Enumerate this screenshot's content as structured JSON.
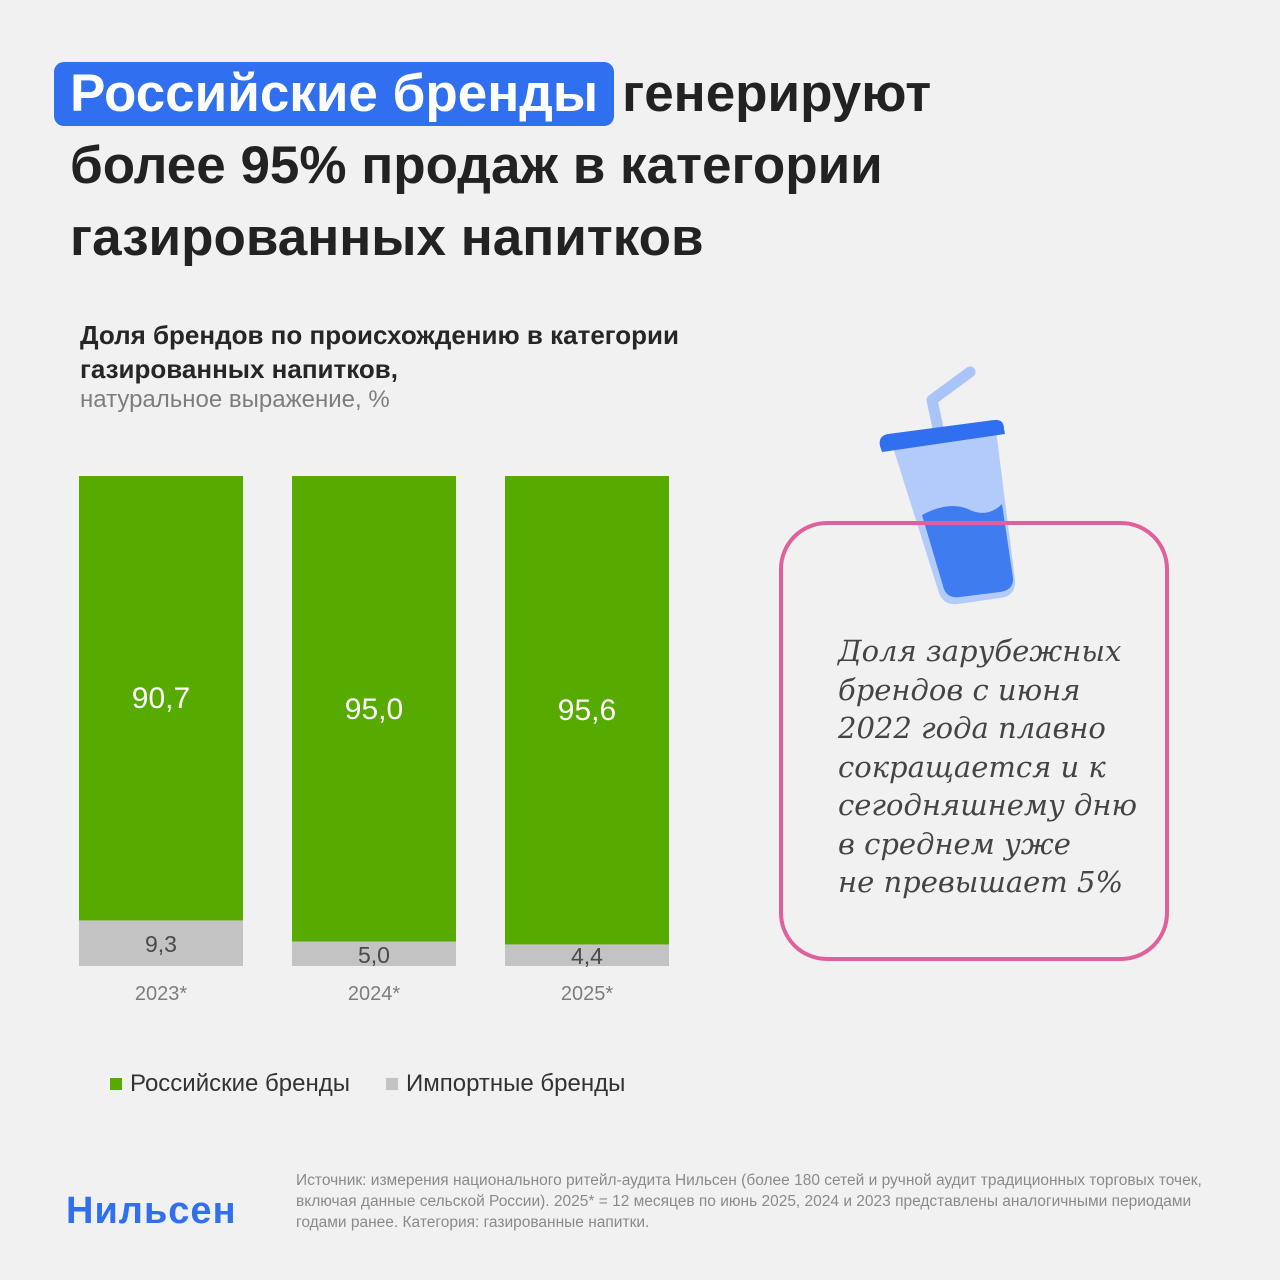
{
  "headline": {
    "highlight": "Российские бренды",
    "rest": "генерируют\nболее 95% продаж в категории\nгазированных напитков"
  },
  "chart_title": "Доля брендов по происхождению в категории\nгазированных напитков,",
  "chart_subtitle": "натуральное выражение, %",
  "chart_data": {
    "type": "bar",
    "stacked": true,
    "categories": [
      "2023*",
      "2024*",
      "2025*"
    ],
    "series": [
      {
        "name": "Российские бренды",
        "values": [
          90.7,
          95.0,
          95.6
        ],
        "labels": [
          "90,7",
          "95,0",
          "95,6"
        ],
        "color": "#57ab00"
      },
      {
        "name": "Импортные бренды",
        "values": [
          9.3,
          5.0,
          4.4
        ],
        "labels": [
          "9,3",
          "5,0",
          "4,4"
        ],
        "color": "#c3c3c3"
      }
    ],
    "ylim": [
      0,
      100
    ],
    "grid": false,
    "legend": "bottom-left"
  },
  "callout": "Доля зарубежных\nбрендов с июня\n2022 года плавно\nсокращается и к\nсегодняшнему дню\nв среднем уже\nне превышает 5%",
  "cup_icon": "soda-cup-icon",
  "logo": "Нильсен",
  "source": "Источник: измерения национального ритейл-аудита Нильсен (более 180 сетей и ручной аудит традиционных торговых точек, включая данные сельской России). 2025* = 12 месяцев по июнь 2025, 2024 и 2023 представлены аналогичными периодами годами ранее. Категория: газированные напитки.",
  "colors": {
    "accent": "#2f6ff0",
    "callout_border": "#e0609c",
    "russian": "#57ab00",
    "import": "#c3c3c3"
  }
}
